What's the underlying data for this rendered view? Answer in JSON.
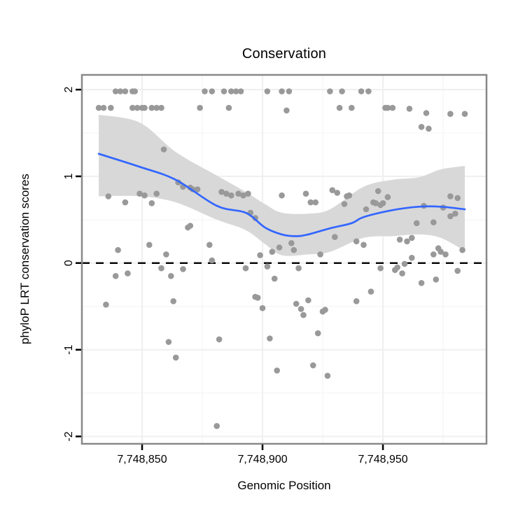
{
  "chart_data": {
    "type": "scatter",
    "title": "Conservation",
    "xlabel": "Genomic Position",
    "ylabel": "phyloP LRT conservation scores",
    "xlim": [
      7748825,
      7748993
    ],
    "ylim": [
      -2.085,
      2.17
    ],
    "grid": "faint major and minor gridlines",
    "legend": "none",
    "x_ticks": [
      {
        "value": 7748850,
        "label": "7,748,850"
      },
      {
        "value": 7748900,
        "label": "7,748,900"
      },
      {
        "value": 7748950,
        "label": "7,748,950"
      }
    ],
    "x_minor_ticks": [
      7748875,
      7748925,
      7748975
    ],
    "y_ticks": [
      {
        "value": -2,
        "label": "-2"
      },
      {
        "value": -1,
        "label": "-1"
      },
      {
        "value": 0,
        "label": "0"
      },
      {
        "value": 1,
        "label": "1"
      },
      {
        "value": 2,
        "label": "2"
      }
    ],
    "y_minor_ticks": [
      -1.5,
      -0.5,
      0.5,
      1.5
    ],
    "hline": {
      "y": 0,
      "style": "dashed",
      "color": "#000000"
    },
    "colors": {
      "point": "#999999",
      "smooth_line": "#3366FF",
      "ribbon": "#d8d8d8",
      "panel_border": "#888888",
      "grid_major": "#efefef",
      "grid_minor": "#f7f7f7",
      "text": "#000000",
      "tick": "#000000",
      "background": "#ffffff"
    },
    "points": [
      [
        7748832,
        1.79
      ],
      [
        7748834,
        1.79
      ],
      [
        7748837,
        1.79
      ],
      [
        7748839,
        1.98
      ],
      [
        7748841,
        1.98
      ],
      [
        7748843,
        1.98
      ],
      [
        7748846,
        1.98
      ],
      [
        7748847,
        1.98
      ],
      [
        7748846,
        1.79
      ],
      [
        7748848,
        1.79
      ],
      [
        7748850,
        1.79
      ],
      [
        7748851,
        1.79
      ],
      [
        7748854,
        1.79
      ],
      [
        7748856,
        1.79
      ],
      [
        7748858,
        1.79
      ],
      [
        7748874,
        1.79
      ],
      [
        7748876,
        1.98
      ],
      [
        7748879,
        1.98
      ],
      [
        7748859,
        1.31
      ],
      [
        7748865,
        0.93
      ],
      [
        7748867,
        0.88
      ],
      [
        7748870,
        0.87
      ],
      [
        7748871,
        0.85
      ],
      [
        7748873,
        0.85
      ],
      [
        7748849,
        0.8
      ],
      [
        7748851,
        0.78
      ],
      [
        7748856,
        0.8
      ],
      [
        7748836,
        0.77
      ],
      [
        7748843,
        0.7
      ],
      [
        7748854,
        0.69
      ],
      [
        7748869,
        0.41
      ],
      [
        7748870,
        0.43
      ],
      [
        7748878,
        0.21
      ],
      [
        7748853,
        0.21
      ],
      [
        7748840,
        0.15
      ],
      [
        7748860,
        0.1
      ],
      [
        7748879,
        0.03
      ],
      [
        7748839,
        -0.15
      ],
      [
        7748844,
        -0.12
      ],
      [
        7748858,
        -0.06
      ],
      [
        7748862,
        -0.15
      ],
      [
        7748867,
        -0.07
      ],
      [
        7748835,
        -0.48
      ],
      [
        7748863,
        -0.44
      ],
      [
        7748861,
        -0.91
      ],
      [
        7748864,
        -1.09
      ],
      [
        7748881,
        -1.88
      ],
      [
        7748882,
        -0.88
      ],
      [
        7748884,
        1.98
      ],
      [
        7748887,
        1.98
      ],
      [
        7748889,
        1.98
      ],
      [
        7748891,
        1.98
      ],
      [
        7748902,
        1.98
      ],
      [
        7748908,
        1.98
      ],
      [
        7748911,
        1.98
      ],
      [
        7748928,
        1.98
      ],
      [
        7748933,
        1.98
      ],
      [
        7748886,
        1.79
      ],
      [
        7748910,
        1.76
      ],
      [
        7748932,
        1.79
      ],
      [
        7748883,
        0.82
      ],
      [
        7748885,
        0.8
      ],
      [
        7748887,
        0.78
      ],
      [
        7748890,
        0.8
      ],
      [
        7748892,
        0.78
      ],
      [
        7748894,
        0.8
      ],
      [
        7748908,
        0.78
      ],
      [
        7748918,
        0.8
      ],
      [
        7748920,
        0.7
      ],
      [
        7748922,
        0.7
      ],
      [
        7748929,
        0.84
      ],
      [
        7748931,
        0.81
      ],
      [
        7748935,
        0.77
      ],
      [
        7748936,
        0.78
      ],
      [
        7748934,
        0.68
      ],
      [
        7748895,
        0.58
      ],
      [
        7748897,
        0.52
      ],
      [
        7748930,
        0.3
      ],
      [
        7748912,
        0.23
      ],
      [
        7748913,
        0.15
      ],
      [
        7748907,
        0.18
      ],
      [
        7748904,
        0.13
      ],
      [
        7748899,
        0.09
      ],
      [
        7748924,
        0.1
      ],
      [
        7748893,
        -0.06
      ],
      [
        7748902,
        -0.04
      ],
      [
        7748905,
        -0.18
      ],
      [
        7748915,
        -0.06
      ],
      [
        7748897,
        -0.39
      ],
      [
        7748898,
        -0.4
      ],
      [
        7748900,
        -0.52
      ],
      [
        7748914,
        -0.47
      ],
      [
        7748919,
        -0.43
      ],
      [
        7748916,
        -0.53
      ],
      [
        7748917,
        -0.6
      ],
      [
        7748925,
        -0.56
      ],
      [
        7748926,
        -0.54
      ],
      [
        7748923,
        -0.81
      ],
      [
        7748903,
        -0.87
      ],
      [
        7748921,
        -1.18
      ],
      [
        7748906,
        -1.24
      ],
      [
        7748927,
        -1.3
      ],
      [
        7748941,
        1.98
      ],
      [
        7748944,
        1.98
      ],
      [
        7748937,
        1.79
      ],
      [
        7748951,
        1.79
      ],
      [
        7748952,
        1.79
      ],
      [
        7748954,
        1.79
      ],
      [
        7748961,
        1.78
      ],
      [
        7748968,
        1.73
      ],
      [
        7748978,
        1.72
      ],
      [
        7748984,
        1.72
      ],
      [
        7748966,
        1.57
      ],
      [
        7748969,
        1.55
      ],
      [
        7748948,
        0.83
      ],
      [
        7748943,
        0.62
      ],
      [
        7748946,
        0.7
      ],
      [
        7748947,
        0.69
      ],
      [
        7748949,
        0.67
      ],
      [
        7748950,
        0.69
      ],
      [
        7748952,
        0.76
      ],
      [
        7748967,
        0.66
      ],
      [
        7748964,
        0.46
      ],
      [
        7748971,
        0.47
      ],
      [
        7748975,
        0.64
      ],
      [
        7748978,
        0.54
      ],
      [
        7748980,
        0.57
      ],
      [
        7748978,
        0.77
      ],
      [
        7748981,
        0.75
      ],
      [
        7748939,
        0.25
      ],
      [
        7748942,
        0.21
      ],
      [
        7748957,
        0.27
      ],
      [
        7748960,
        0.25
      ],
      [
        7748962,
        0.29
      ],
      [
        7748971,
        0.1
      ],
      [
        7748973,
        0.17
      ],
      [
        7748974,
        0.13
      ],
      [
        7748976,
        0.1
      ],
      [
        7748983,
        0.15
      ],
      [
        7748962,
        0.06
      ],
      [
        7748949,
        -0.06
      ],
      [
        7748955,
        -0.08
      ],
      [
        7748956,
        -0.05
      ],
      [
        7748959,
        -0.01
      ],
      [
        7748958,
        -0.12
      ],
      [
        7748966,
        -0.23
      ],
      [
        7748972,
        -0.19
      ],
      [
        7748945,
        -0.33
      ],
      [
        7748939,
        -0.44
      ],
      [
        7748981,
        -0.09
      ]
    ],
    "smooth_line": [
      [
        7748832,
        1.26
      ],
      [
        7748849,
        1.11
      ],
      [
        7748864,
        0.96
      ],
      [
        7748881,
        0.66
      ],
      [
        7748893,
        0.58
      ],
      [
        7748901,
        0.41
      ],
      [
        7748908,
        0.33
      ],
      [
        7748914,
        0.31
      ],
      [
        7748919,
        0.33
      ],
      [
        7748928,
        0.4
      ],
      [
        7748937,
        0.46
      ],
      [
        7748942,
        0.53
      ],
      [
        7748954,
        0.61
      ],
      [
        7748965,
        0.65
      ],
      [
        7748974,
        0.65
      ],
      [
        7748984,
        0.62
      ]
    ],
    "ribbon": [
      [
        7748832,
        0.77,
        1.71
      ],
      [
        7748849,
        0.77,
        1.62
      ],
      [
        7748864,
        0.7,
        1.28
      ],
      [
        7748881,
        0.5,
        1.01
      ],
      [
        7748893,
        0.38,
        0.82
      ],
      [
        7748901,
        0.22,
        0.68
      ],
      [
        7748908,
        0.09,
        0.58
      ],
      [
        7748919,
        0.1,
        0.57
      ],
      [
        7748928,
        0.13,
        0.62
      ],
      [
        7748942,
        0.29,
        0.88
      ],
      [
        7748954,
        0.31,
        0.96
      ],
      [
        7748965,
        0.33,
        0.99
      ],
      [
        7748974,
        0.29,
        1.08
      ],
      [
        7748984,
        0.14,
        1.12
      ]
    ]
  }
}
